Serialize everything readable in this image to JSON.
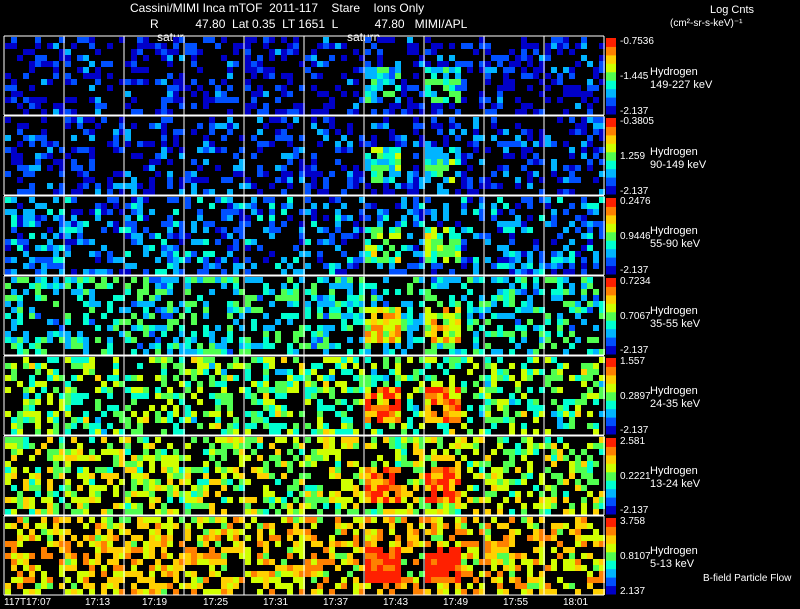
{
  "header": {
    "line1": "Cassini/MIMI Inca mTOF  2011-117    Stare    Ions Only",
    "line2": "R           47.80  Lat 0.35  LT 1651  L           47.80   MIMI/APL",
    "saturn_labels": [
      "satur",
      "saturn"
    ],
    "units_title": "Log Cnts",
    "units_line2": "(cm²-sr-s-keV)⁻¹"
  },
  "footer": {
    "bfield_label": "B-field Particle Flow"
  },
  "chart_data": {
    "type": "heatmap",
    "title": "Cassini/MIMI Inca mTOF  2011-117    Stare    Ions Only",
    "x_tick_labels": [
      "117T17:07",
      "17:13",
      "17:19",
      "17:25",
      "17:31",
      "17:37",
      "17:43",
      "17:49",
      "17:55",
      "18:01"
    ],
    "panels": [
      {
        "species": "Hydrogen",
        "energy": "149-227 keV",
        "cbar_max": "-0.7536",
        "cbar_mid": "-1.445",
        "cbar_min": "-2.137",
        "level": 0.08
      },
      {
        "species": "Hydrogen",
        "energy": "90-149 keV",
        "cbar_max": "-0.3805",
        "cbar_mid": "1.259",
        "cbar_min": "-2.137",
        "level": 0.12
      },
      {
        "species": "Hydrogen",
        "energy": "55-90 keV",
        "cbar_max": "0.2476",
        "cbar_mid": "0.9446",
        "cbar_min": "-2.137",
        "level": 0.22
      },
      {
        "species": "Hydrogen",
        "energy": "35-55 keV",
        "cbar_max": "0.7234",
        "cbar_mid": "0.7067",
        "cbar_min": "-2.137",
        "level": 0.38
      },
      {
        "species": "Hydrogen",
        "energy": "24-35 keV",
        "cbar_max": "1.557",
        "cbar_mid": "0.2897",
        "cbar_min": "-2.137",
        "level": 0.5
      },
      {
        "species": "Hydrogen",
        "energy": "13-24 keV",
        "cbar_max": "2.581",
        "cbar_mid": "0.2221",
        "cbar_min": "-2.137",
        "level": 0.58
      },
      {
        "species": "Hydrogen",
        "energy": "5-13 keV",
        "cbar_max": "3.758",
        "cbar_mid": "0.8107",
        "cbar_min": "2.137",
        "level": 0.7
      }
    ]
  },
  "colors": {
    "background": "#000000",
    "grid_line": "#ffffff",
    "colormap": [
      "#0000c8",
      "#0050ff",
      "#00b4ff",
      "#00ffd0",
      "#50ff50",
      "#d0ff00",
      "#ffd000",
      "#ff8000",
      "#ff2000"
    ]
  }
}
